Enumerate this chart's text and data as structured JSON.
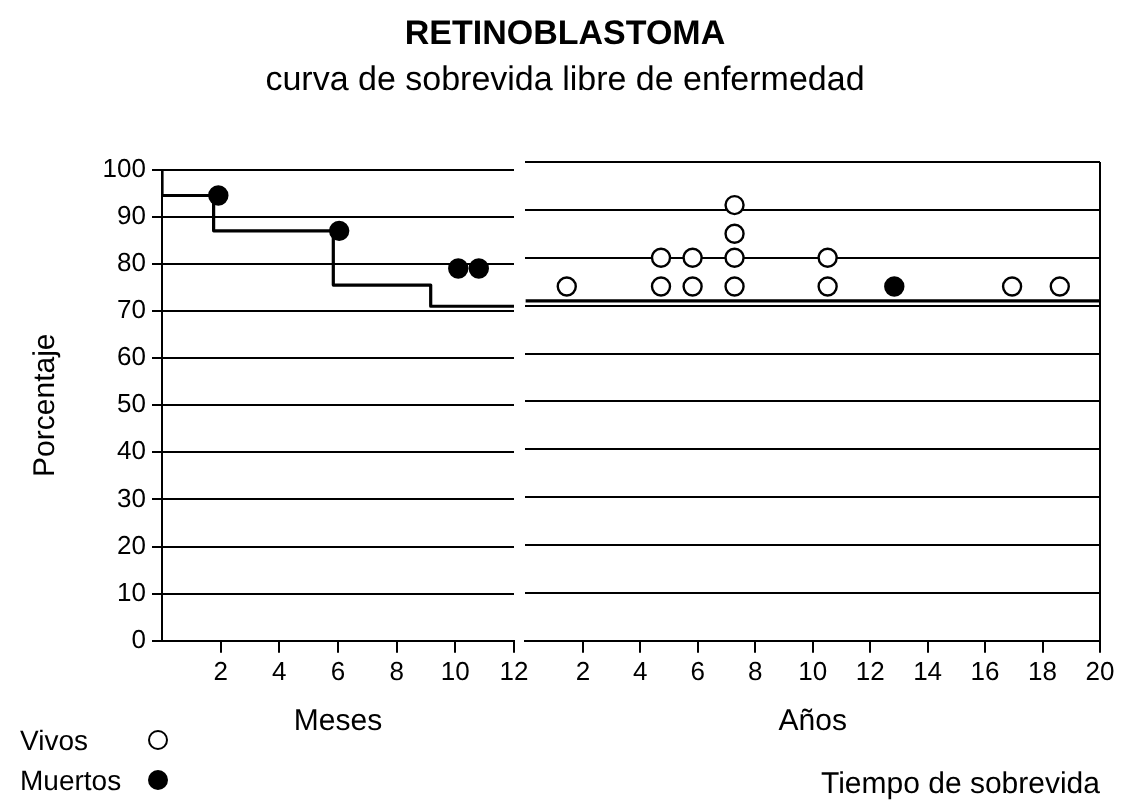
{
  "chart_data": [
    {
      "type": "step",
      "title": "RETINOBLASTOMA",
      "subtitle": "curva de sobrevida libre de enfermedad",
      "ylabel": "Porcentaje",
      "xlabel": "Meses",
      "xlim": [
        0,
        12
      ],
      "xticks": [
        2,
        4,
        6,
        8,
        10,
        12
      ],
      "ylim": [
        0,
        100
      ],
      "yticks": [
        0,
        10,
        20,
        30,
        40,
        50,
        60,
        70,
        80,
        90,
        100
      ],
      "grid": "y",
      "series": [
        {
          "color": "#000000",
          "x": [
            0,
            1.76,
            5.84,
            9.16,
            11.8,
            12
          ],
          "values": [
            100,
            94.5,
            87,
            75.5,
            71,
            71
          ]
        },
        {
          "type": "scatter",
          "color": "#000000",
          "marker": "circle",
          "x": [
            1.92,
            6.04,
            10.1,
            10.8
          ],
          "values": [
            94.5,
            87,
            79,
            79
          ]
        }
      ]
    },
    {
      "type": "step",
      "xlabel": "Años",
      "annotations": [
        "Tiempo de sobrevida"
      ],
      "xlim": [
        0,
        20
      ],
      "xticks": [
        2,
        4,
        6,
        8,
        10,
        12,
        14,
        16,
        18,
        20
      ],
      "ylim": [
        0,
        100
      ],
      "yticks": [
        0,
        10,
        20,
        30,
        40,
        50,
        60,
        70,
        80,
        90,
        100
      ],
      "grid": "y",
      "tick_labels": "x",
      "legend": "bottom left",
      "series": [
        {
          "color": "#000000",
          "x": [
            0,
            20
          ],
          "values": [
            71,
            71
          ]
        },
        {
          "type": "scatter",
          "name": "Vivos",
          "color": "#ffffff",
          "marker": "circle",
          "x": [
            1.44,
            4.72,
            4.72,
            5.82,
            5.82,
            7.28,
            7.28,
            7.28,
            7.28,
            10.52,
            10.52,
            16.94,
            18.6
          ],
          "values": [
            74,
            74,
            80,
            74,
            80,
            74,
            80,
            85,
            91,
            74,
            80,
            74,
            74
          ]
        },
        {
          "type": "scatter",
          "name": "Muertos",
          "color": "#000000",
          "marker": "circle",
          "x": [
            12.84
          ],
          "values": [
            74
          ]
        }
      ]
    }
  ]
}
